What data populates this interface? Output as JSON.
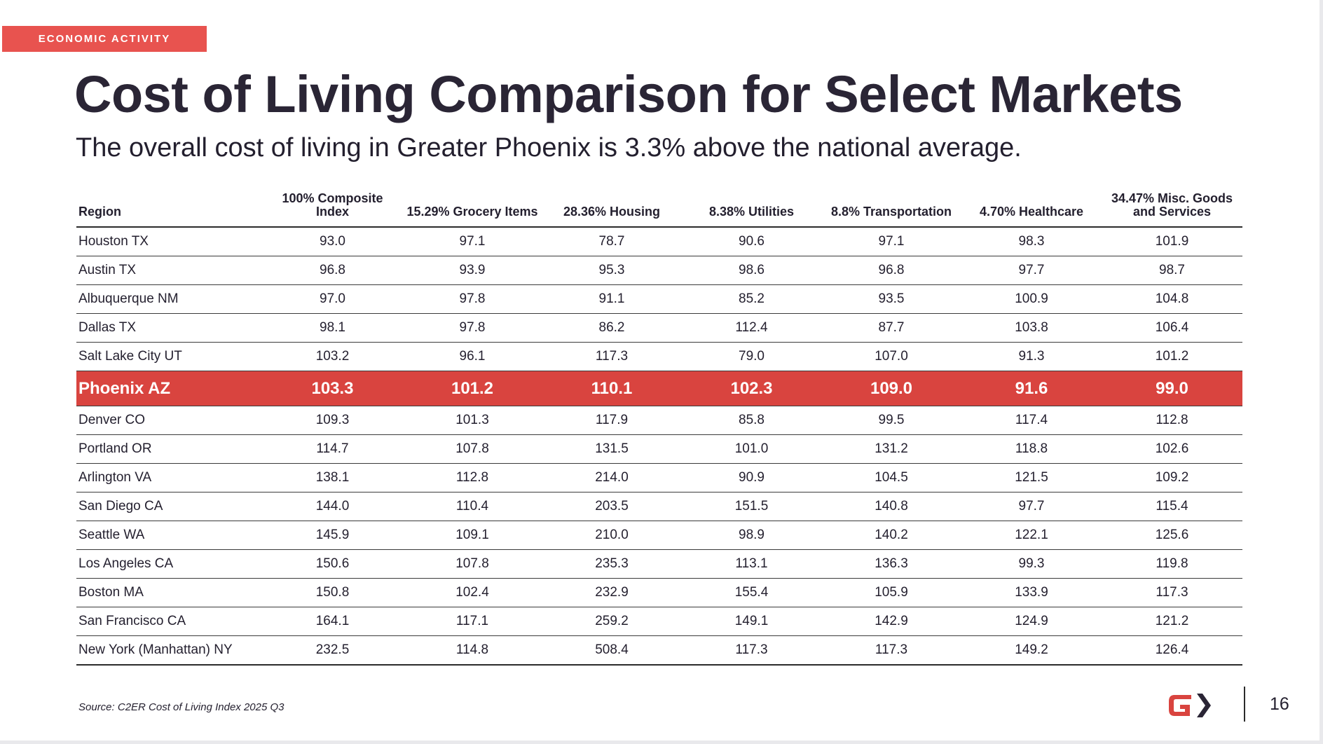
{
  "tag": "ECONOMIC ACTIVITY",
  "title": "Cost of Living Comparison for Select Markets",
  "subtitle": "The overall cost of living in Greater Phoenix is 3.3% above the national average.",
  "table": {
    "headers": [
      "Region",
      "100% Composite Index",
      "15.29% Grocery Items",
      "28.36% Housing",
      "8.38% Utilities",
      "8.8% Transportation",
      "4.70% Healthcare",
      "34.47% Misc. Goods and Services"
    ],
    "rows": [
      [
        "Houston TX",
        "93.0",
        "97.1",
        "78.7",
        "90.6",
        "97.1",
        "98.3",
        "101.9"
      ],
      [
        "Austin TX",
        "96.8",
        "93.9",
        "95.3",
        "98.6",
        "96.8",
        "97.7",
        "98.7"
      ],
      [
        "Albuquerque NM",
        "97.0",
        "97.8",
        "91.1",
        "85.2",
        "93.5",
        "100.9",
        "104.8"
      ],
      [
        "Dallas TX",
        "98.1",
        "97.8",
        "86.2",
        "112.4",
        "87.7",
        "103.8",
        "106.4"
      ],
      [
        "Salt Lake City UT",
        "103.2",
        "96.1",
        "117.3",
        "79.0",
        "107.0",
        "91.3",
        "101.2"
      ],
      [
        "Phoenix AZ",
        "103.3",
        "101.2",
        "110.1",
        "102.3",
        "109.0",
        "91.6",
        "99.0"
      ],
      [
        "Denver CO",
        "109.3",
        "101.3",
        "117.9",
        "85.8",
        "99.5",
        "117.4",
        "112.8"
      ],
      [
        "Portland OR",
        "114.7",
        "107.8",
        "131.5",
        "101.0",
        "131.2",
        "118.8",
        "102.6"
      ],
      [
        "Arlington VA",
        "138.1",
        "112.8",
        "214.0",
        "90.9",
        "104.5",
        "121.5",
        "109.2"
      ],
      [
        "San Diego CA",
        "144.0",
        "110.4",
        "203.5",
        "151.5",
        "140.8",
        "97.7",
        "115.4"
      ],
      [
        "Seattle WA",
        "145.9",
        "109.1",
        "210.0",
        "98.9",
        "140.2",
        "122.1",
        "125.6"
      ],
      [
        "Los Angeles CA",
        "150.6",
        "107.8",
        "235.3",
        "113.1",
        "136.3",
        "99.3",
        "119.8"
      ],
      [
        "Boston MA",
        "150.8",
        "102.4",
        "232.9",
        "155.4",
        "105.9",
        "133.9",
        "117.3"
      ],
      [
        "San Francisco CA",
        "164.1",
        "117.1",
        "259.2",
        "149.1",
        "142.9",
        "124.9",
        "121.2"
      ],
      [
        "New York (Manhattan) NY",
        "232.5",
        "114.8",
        "508.4",
        "117.3",
        "117.3",
        "149.2",
        "126.4"
      ]
    ],
    "highlight_region": "Phoenix AZ"
  },
  "source": "Source: C2ER Cost of Living Index 2025 Q3",
  "page_number": "16",
  "colors": {
    "accent_red": "#d9443f",
    "tag_red": "#e8534f",
    "text_dark": "#231f2e"
  },
  "logo_icon": "gpec-logo-icon"
}
